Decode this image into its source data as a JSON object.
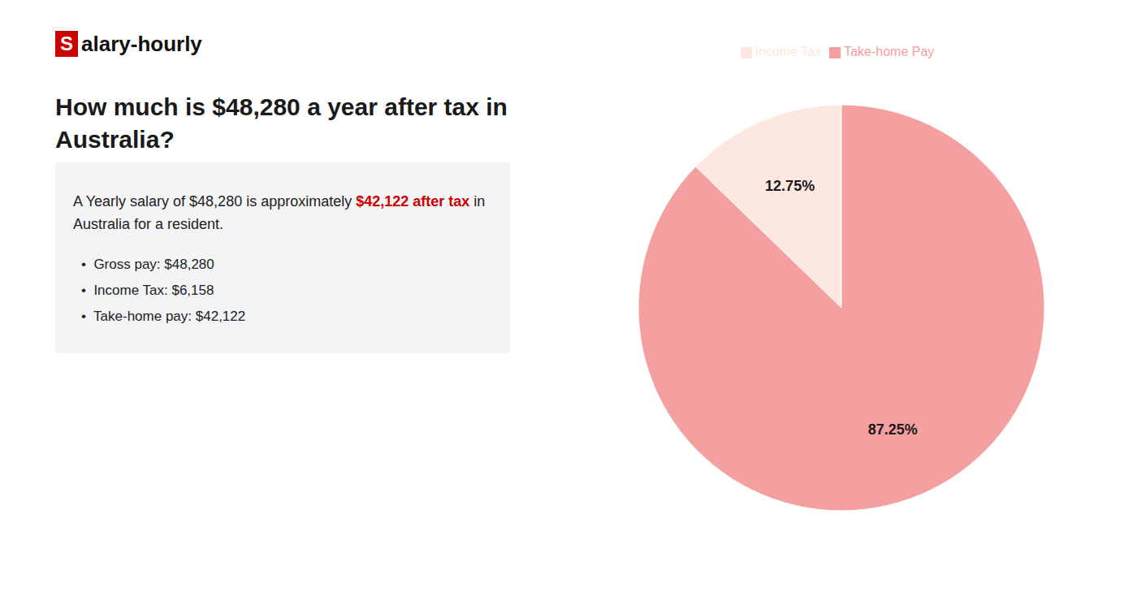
{
  "chart_data": {
    "type": "pie",
    "title": [
      "How much is $48,280 a year after tax in",
      "Australia?"
    ],
    "annotations": [
      {
        "text": "S",
        "color": "#ffffff",
        "background": "#cc0000"
      },
      {
        "text": "alary-hourly",
        "color": "#111111"
      },
      {
        "text": "A Yearly salary of $48,280 is approximately ",
        "color": "#222222"
      },
      {
        "text": "$42,122 after tax",
        "color": "#cc0000"
      },
      {
        "text": " in",
        "color": "#222222"
      },
      {
        "text": "Australia for a resident.",
        "color": "#222222"
      },
      {
        "text": "•  Gross pay: $48,280",
        "color": "#222222"
      },
      {
        "text": "•  Income Tax: $6,158",
        "color": "#222222"
      },
      {
        "text": "•  Take-home pay: $42,122",
        "color": "#222222"
      }
    ],
    "categories": [
      "Income Tax",
      "Take-home Pay"
    ],
    "values": [
      12.75,
      87.25
    ],
    "value_labels": [
      "12.75%",
      "87.25%"
    ],
    "colors": [
      "#fce8e0",
      "#f4a0a0"
    ],
    "data_labels": true,
    "legend": "top"
  }
}
